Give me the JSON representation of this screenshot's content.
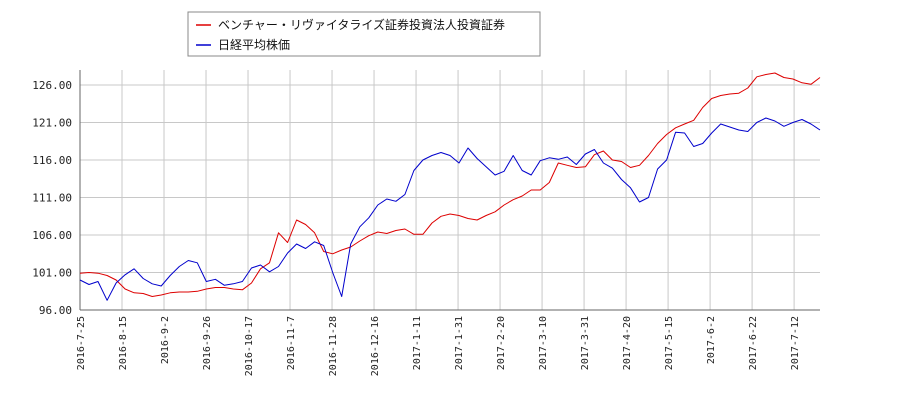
{
  "chart_data": {
    "type": "line",
    "ylim": [
      96.0,
      128.0
    ],
    "y_ticks": [
      "96.00",
      "101.00",
      "106.00",
      "111.00",
      "116.00",
      "121.00",
      "126.00"
    ],
    "y_tick_values": [
      96,
      101,
      106,
      111,
      116,
      121,
      126
    ],
    "x_ticks": [
      "2016-7-25",
      "2016-8-15",
      "2016-9-2",
      "2016-9-26",
      "2016-10-17",
      "2016-11-7",
      "2016-11-28",
      "2016-12-16",
      "2017-1-11",
      "2017-1-31",
      "2017-2-20",
      "2017-3-10",
      "2017-3-31",
      "2017-4-20",
      "2017-5-15",
      "2017-6-2",
      "2017-6-22",
      "2017-7-12"
    ],
    "grid": true,
    "legend_position": "top-left",
    "series": [
      {
        "name": "ベンチャー・リヴァイタライズ証券投資法人投資証券",
        "color": "#dd0000",
        "values": [
          [
            0,
            100.9
          ],
          [
            1,
            101.0
          ],
          [
            2,
            100.9
          ],
          [
            3,
            100.6
          ],
          [
            4,
            100.0
          ],
          [
            5,
            98.8
          ],
          [
            6,
            98.3
          ],
          [
            7,
            98.2
          ],
          [
            8,
            97.8
          ],
          [
            9,
            98.0
          ],
          [
            10,
            98.3
          ],
          [
            11,
            98.4
          ],
          [
            12,
            98.4
          ],
          [
            13,
            98.5
          ],
          [
            14,
            98.8
          ],
          [
            15,
            99.0
          ],
          [
            16,
            99.0
          ],
          [
            17,
            98.8
          ],
          [
            18,
            98.7
          ],
          [
            19,
            99.6
          ],
          [
            20,
            101.5
          ],
          [
            21,
            102.3
          ],
          [
            22,
            106.3
          ],
          [
            23,
            105.0
          ],
          [
            24,
            108.0
          ],
          [
            25,
            107.4
          ],
          [
            26,
            106.3
          ],
          [
            27,
            103.8
          ],
          [
            28,
            103.5
          ],
          [
            29,
            104.0
          ],
          [
            30,
            104.4
          ],
          [
            31,
            105.2
          ],
          [
            32,
            105.9
          ],
          [
            33,
            106.4
          ],
          [
            34,
            106.2
          ],
          [
            35,
            106.6
          ],
          [
            36,
            106.8
          ],
          [
            37,
            106.1
          ],
          [
            38,
            106.1
          ],
          [
            39,
            107.6
          ],
          [
            40,
            108.5
          ],
          [
            41,
            108.8
          ],
          [
            42,
            108.6
          ],
          [
            43,
            108.2
          ],
          [
            44,
            108.0
          ],
          [
            45,
            108.6
          ],
          [
            46,
            109.1
          ],
          [
            47,
            110.0
          ],
          [
            48,
            110.7
          ],
          [
            49,
            111.2
          ],
          [
            50,
            112.0
          ],
          [
            51,
            112.0
          ],
          [
            52,
            113.0
          ],
          [
            53,
            115.6
          ],
          [
            54,
            115.3
          ],
          [
            55,
            115.0
          ],
          [
            56,
            115.1
          ],
          [
            57,
            116.7
          ],
          [
            58,
            117.2
          ],
          [
            59,
            116.0
          ],
          [
            60,
            115.8
          ],
          [
            61,
            115.0
          ],
          [
            62,
            115.3
          ],
          [
            63,
            116.6
          ],
          [
            64,
            118.2
          ],
          [
            65,
            119.4
          ],
          [
            66,
            120.3
          ],
          [
            67,
            120.8
          ],
          [
            68,
            121.3
          ],
          [
            69,
            123.0
          ],
          [
            70,
            124.2
          ],
          [
            71,
            124.6
          ],
          [
            72,
            124.8
          ],
          [
            73,
            124.9
          ],
          [
            74,
            125.6
          ],
          [
            75,
            127.1
          ],
          [
            76,
            127.4
          ],
          [
            77,
            127.6
          ],
          [
            78,
            127.0
          ],
          [
            79,
            126.8
          ],
          [
            80,
            126.3
          ],
          [
            81,
            126.1
          ],
          [
            82,
            127.0
          ]
        ]
      },
      {
        "name": "日経平均株価",
        "color": "#0000cc",
        "values": [
          [
            0,
            100.0
          ],
          [
            1,
            99.4
          ],
          [
            2,
            99.8
          ],
          [
            3,
            97.3
          ],
          [
            4,
            99.6
          ],
          [
            5,
            100.7
          ],
          [
            6,
            101.5
          ],
          [
            7,
            100.2
          ],
          [
            8,
            99.5
          ],
          [
            9,
            99.2
          ],
          [
            10,
            100.6
          ],
          [
            11,
            101.8
          ],
          [
            12,
            102.6
          ],
          [
            13,
            102.3
          ],
          [
            14,
            99.8
          ],
          [
            15,
            100.1
          ],
          [
            16,
            99.3
          ],
          [
            17,
            99.5
          ],
          [
            18,
            99.8
          ],
          [
            19,
            101.6
          ],
          [
            20,
            102.0
          ],
          [
            21,
            101.1
          ],
          [
            22,
            101.8
          ],
          [
            23,
            103.6
          ],
          [
            24,
            104.8
          ],
          [
            25,
            104.2
          ],
          [
            26,
            105.1
          ],
          [
            27,
            104.6
          ],
          [
            28,
            101.0
          ],
          [
            29,
            97.8
          ],
          [
            30,
            104.8
          ],
          [
            31,
            107.1
          ],
          [
            32,
            108.3
          ],
          [
            33,
            110.0
          ],
          [
            34,
            110.8
          ],
          [
            35,
            110.5
          ],
          [
            36,
            111.4
          ],
          [
            37,
            114.6
          ],
          [
            38,
            116.0
          ],
          [
            39,
            116.6
          ],
          [
            40,
            117.0
          ],
          [
            41,
            116.6
          ],
          [
            42,
            115.6
          ],
          [
            43,
            117.6
          ],
          [
            44,
            116.2
          ],
          [
            45,
            115.1
          ],
          [
            46,
            114.0
          ],
          [
            47,
            114.5
          ],
          [
            48,
            116.6
          ],
          [
            49,
            114.6
          ],
          [
            50,
            114.0
          ],
          [
            51,
            115.9
          ],
          [
            52,
            116.3
          ],
          [
            53,
            116.1
          ],
          [
            54,
            116.4
          ],
          [
            55,
            115.4
          ],
          [
            56,
            116.8
          ],
          [
            57,
            117.4
          ],
          [
            58,
            115.6
          ],
          [
            59,
            114.9
          ],
          [
            60,
            113.4
          ],
          [
            61,
            112.3
          ],
          [
            62,
            110.4
          ],
          [
            63,
            111.0
          ],
          [
            64,
            114.8
          ],
          [
            65,
            116.0
          ],
          [
            66,
            119.7
          ],
          [
            67,
            119.6
          ],
          [
            68,
            117.8
          ],
          [
            69,
            118.2
          ],
          [
            70,
            119.6
          ],
          [
            71,
            120.8
          ],
          [
            72,
            120.4
          ],
          [
            73,
            120.0
          ],
          [
            74,
            119.8
          ],
          [
            75,
            121.0
          ],
          [
            76,
            121.6
          ],
          [
            77,
            121.2
          ],
          [
            78,
            120.5
          ],
          [
            79,
            121.0
          ],
          [
            80,
            121.4
          ],
          [
            81,
            120.8
          ],
          [
            82,
            120.0
          ]
        ]
      }
    ]
  }
}
